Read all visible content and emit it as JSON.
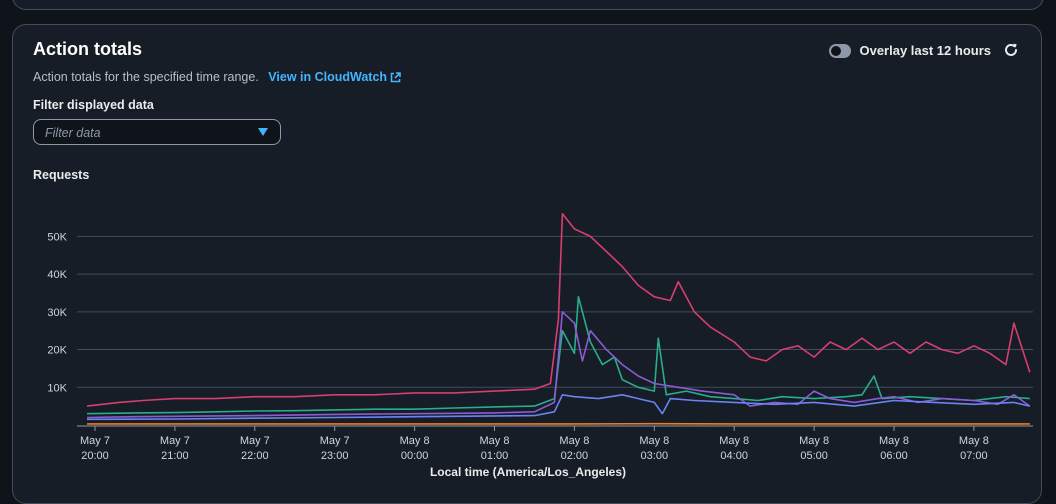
{
  "panel": {
    "title": "Action totals",
    "description": "Action totals for the specified time range.",
    "link_label": "View in CloudWatch",
    "overlay_label": "Overlay last 12 hours",
    "overlay_enabled": false,
    "filter_label": "Filter displayed data",
    "filter_placeholder": "Filter data"
  },
  "chart_data": {
    "type": "line",
    "title": "",
    "ylabel": "Requests",
    "xlabel": "Local time (America/Los_Angeles)",
    "ylim": [
      0,
      57000
    ],
    "yticks": [
      {
        "value": 10000,
        "label": "10K"
      },
      {
        "value": 20000,
        "label": "20K"
      },
      {
        "value": 30000,
        "label": "30K"
      },
      {
        "value": 40000,
        "label": "40K"
      },
      {
        "value": 50000,
        "label": "50K"
      }
    ],
    "xticks": [
      {
        "hour": 0,
        "line1": "May 7",
        "line2": "20:00"
      },
      {
        "hour": 1,
        "line1": "May 7",
        "line2": "21:00"
      },
      {
        "hour": 2,
        "line1": "May 7",
        "line2": "22:00"
      },
      {
        "hour": 3,
        "line1": "May 7",
        "line2": "23:00"
      },
      {
        "hour": 4,
        "line1": "May 8",
        "line2": "00:00"
      },
      {
        "hour": 5,
        "line1": "May 8",
        "line2": "01:00"
      },
      {
        "hour": 6,
        "line1": "May 8",
        "line2": "02:00"
      },
      {
        "hour": 7,
        "line1": "May 8",
        "line2": "03:00"
      },
      {
        "hour": 8,
        "line1": "May 8",
        "line2": "04:00"
      },
      {
        "hour": 9,
        "line1": "May 8",
        "line2": "05:00"
      },
      {
        "hour": 10,
        "line1": "May 8",
        "line2": "06:00"
      },
      {
        "hour": 11,
        "line1": "May 8",
        "line2": "07:00"
      }
    ],
    "x_unit": "hours since May 7 20:00",
    "grid": true,
    "series": [
      {
        "color": "#d63f6e",
        "points": [
          [
            -0.1,
            5000
          ],
          [
            0.3,
            6000
          ],
          [
            0.6,
            6500
          ],
          [
            1,
            7000
          ],
          [
            1.5,
            7000
          ],
          [
            2,
            7500
          ],
          [
            2.5,
            7500
          ],
          [
            3,
            8000
          ],
          [
            3.5,
            8000
          ],
          [
            4,
            8500
          ],
          [
            4.5,
            8500
          ],
          [
            5,
            9000
          ],
          [
            5.5,
            9500
          ],
          [
            5.7,
            11000
          ],
          [
            5.8,
            28000
          ],
          [
            5.85,
            56000
          ],
          [
            6,
            52000
          ],
          [
            6.2,
            50000
          ],
          [
            6.4,
            46000
          ],
          [
            6.6,
            42000
          ],
          [
            6.8,
            37000
          ],
          [
            7,
            34000
          ],
          [
            7.2,
            33000
          ],
          [
            7.3,
            38000
          ],
          [
            7.5,
            30000
          ],
          [
            7.7,
            26000
          ],
          [
            8,
            22000
          ],
          [
            8.2,
            18000
          ],
          [
            8.4,
            17000
          ],
          [
            8.6,
            20000
          ],
          [
            8.8,
            21000
          ],
          [
            9,
            18000
          ],
          [
            9.2,
            22000
          ],
          [
            9.4,
            20000
          ],
          [
            9.6,
            23000
          ],
          [
            9.8,
            20000
          ],
          [
            10,
            22000
          ],
          [
            10.2,
            19000
          ],
          [
            10.4,
            22000
          ],
          [
            10.6,
            20000
          ],
          [
            10.8,
            19000
          ],
          [
            11,
            21000
          ],
          [
            11.2,
            19000
          ],
          [
            11.4,
            16000
          ],
          [
            11.5,
            27000
          ],
          [
            11.7,
            14000
          ]
        ]
      },
      {
        "color": "#29ad8a",
        "points": [
          [
            -0.1,
            3000
          ],
          [
            0.5,
            3200
          ],
          [
            1,
            3300
          ],
          [
            1.5,
            3500
          ],
          [
            2,
            3700
          ],
          [
            2.5,
            3800
          ],
          [
            3,
            4000
          ],
          [
            3.5,
            4200
          ],
          [
            4,
            4200
          ],
          [
            4.5,
            4500
          ],
          [
            5,
            4800
          ],
          [
            5.5,
            5000
          ],
          [
            5.75,
            7000
          ],
          [
            5.85,
            25000
          ],
          [
            6,
            19000
          ],
          [
            6.05,
            34000
          ],
          [
            6.2,
            22000
          ],
          [
            6.35,
            16000
          ],
          [
            6.5,
            18000
          ],
          [
            6.6,
            12000
          ],
          [
            6.8,
            10000
          ],
          [
            7,
            9000
          ],
          [
            7.05,
            23000
          ],
          [
            7.15,
            8000
          ],
          [
            7.4,
            9000
          ],
          [
            7.7,
            7500
          ],
          [
            8,
            7000
          ],
          [
            8.3,
            6500
          ],
          [
            8.6,
            7500
          ],
          [
            9,
            7000
          ],
          [
            9.4,
            7500
          ],
          [
            9.6,
            8000
          ],
          [
            9.75,
            13000
          ],
          [
            9.85,
            7000
          ],
          [
            10.2,
            7500
          ],
          [
            10.6,
            7000
          ],
          [
            11,
            6500
          ],
          [
            11.4,
            7500
          ],
          [
            11.7,
            7000
          ]
        ]
      },
      {
        "color": "#8b5bd6",
        "points": [
          [
            -0.1,
            2000
          ],
          [
            0.5,
            2200
          ],
          [
            1,
            2300
          ],
          [
            2,
            2500
          ],
          [
            3,
            2800
          ],
          [
            4,
            3000
          ],
          [
            5,
            3200
          ],
          [
            5.5,
            3500
          ],
          [
            5.75,
            6000
          ],
          [
            5.85,
            30000
          ],
          [
            6,
            27000
          ],
          [
            6.1,
            17000
          ],
          [
            6.2,
            25000
          ],
          [
            6.4,
            20000
          ],
          [
            6.6,
            16000
          ],
          [
            6.8,
            13000
          ],
          [
            7,
            11000
          ],
          [
            7.3,
            10000
          ],
          [
            7.6,
            9000
          ],
          [
            8,
            8000
          ],
          [
            8.2,
            5000
          ],
          [
            8.5,
            6000
          ],
          [
            8.8,
            5500
          ],
          [
            9,
            9000
          ],
          [
            9.2,
            7000
          ],
          [
            9.5,
            6000
          ],
          [
            9.8,
            7000
          ],
          [
            10,
            7500
          ],
          [
            10.3,
            6000
          ],
          [
            10.6,
            7000
          ],
          [
            11,
            6500
          ],
          [
            11.3,
            5500
          ],
          [
            11.5,
            8000
          ],
          [
            11.7,
            5000
          ]
        ]
      },
      {
        "color": "#6a84f2",
        "points": [
          [
            -0.1,
            1500
          ],
          [
            1,
            1600
          ],
          [
            2,
            1800
          ],
          [
            3,
            2000
          ],
          [
            4,
            2200
          ],
          [
            5,
            2400
          ],
          [
            5.5,
            2500
          ],
          [
            5.75,
            3500
          ],
          [
            5.85,
            8000
          ],
          [
            6,
            7500
          ],
          [
            6.3,
            7000
          ],
          [
            6.6,
            8000
          ],
          [
            6.8,
            7000
          ],
          [
            7,
            6000
          ],
          [
            7.1,
            3000
          ],
          [
            7.2,
            7000
          ],
          [
            7.5,
            6500
          ],
          [
            8,
            6000
          ],
          [
            8.5,
            5500
          ],
          [
            9,
            6000
          ],
          [
            9.5,
            5000
          ],
          [
            10,
            6500
          ],
          [
            10.5,
            6000
          ],
          [
            11,
            5500
          ],
          [
            11.5,
            6000
          ],
          [
            11.7,
            5000
          ]
        ]
      },
      {
        "color": "#ef7b22",
        "points": [
          [
            -0.1,
            300
          ],
          [
            1,
            300
          ],
          [
            2,
            300
          ],
          [
            3,
            300
          ],
          [
            4,
            300
          ],
          [
            5,
            300
          ],
          [
            6,
            300
          ],
          [
            7,
            350
          ],
          [
            8,
            300
          ],
          [
            9,
            300
          ],
          [
            10,
            300
          ],
          [
            11,
            300
          ],
          [
            11.7,
            300
          ]
        ]
      }
    ]
  }
}
